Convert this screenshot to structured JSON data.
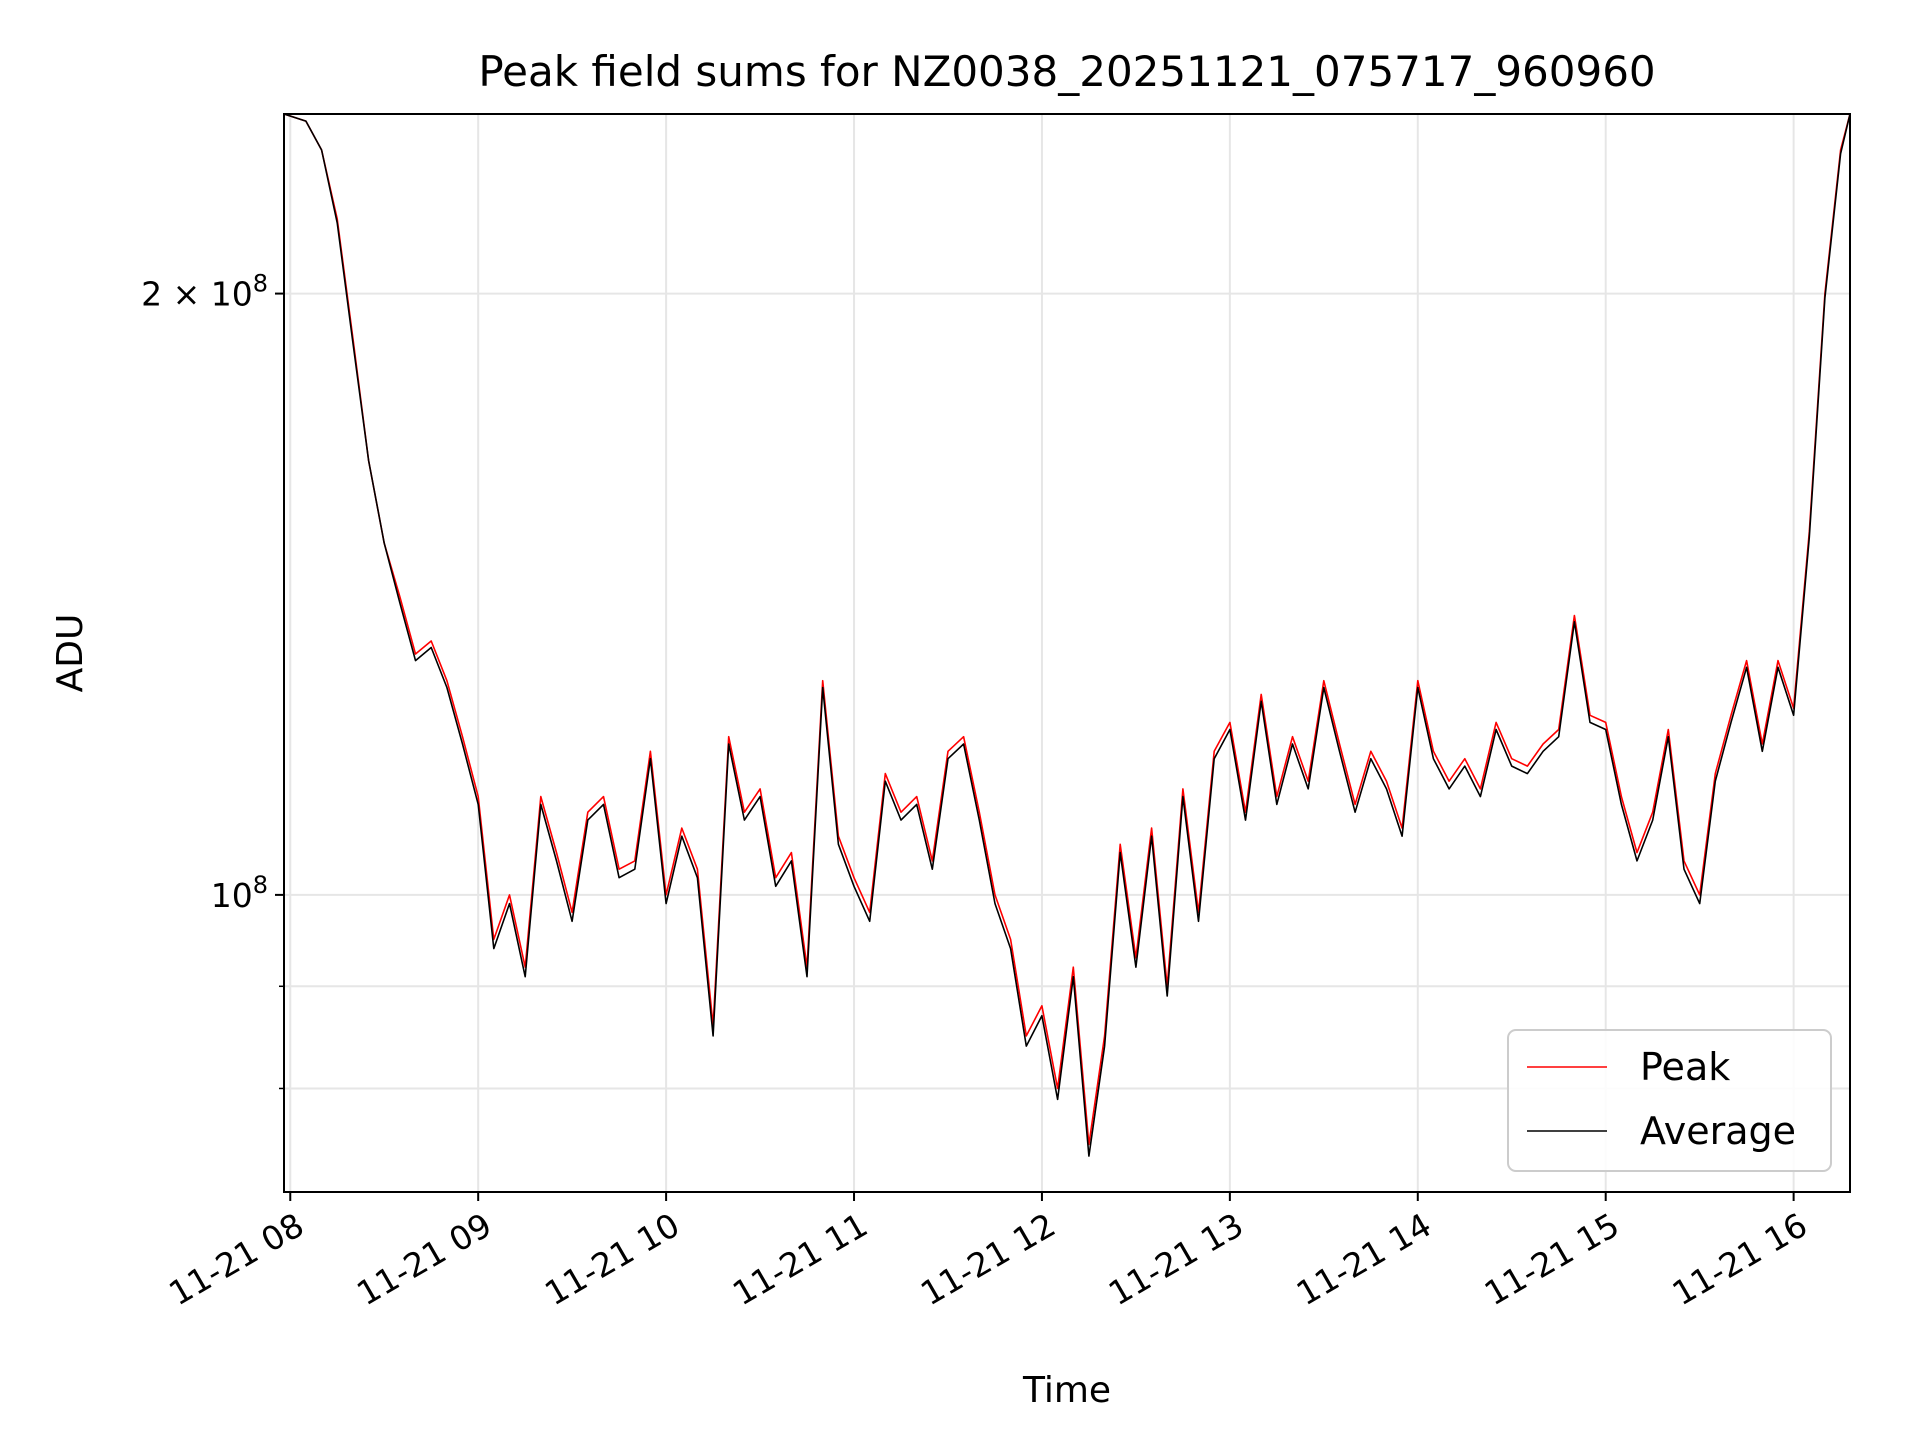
{
  "chart_data": {
    "type": "line",
    "title": "Peak field sums for NZ0038_20251121_075717_960960",
    "xlabel": "Time",
    "ylabel": "ADU",
    "y_scale": "log",
    "ylim": [
      71000000,
      246000000
    ],
    "xlim": [
      "11-21 07:58",
      "11-21 16:18"
    ],
    "grid": true,
    "legend_position": "lower right",
    "x_tick_labels": [
      "11-21 08",
      "11-21 09",
      "11-21 10",
      "11-21 11",
      "11-21 12",
      "11-21 13",
      "11-21 14",
      "11-21 15",
      "11-21 16"
    ],
    "y_tick_labels": [
      {
        "value": 200000000,
        "base": "2 × 10",
        "exp": "8"
      },
      {
        "value": 100000000,
        "base": "10",
        "exp": "8"
      }
    ],
    "y_minor_ticks": [
      90000000,
      80000000
    ],
    "x": [
      "07:58",
      "08:05",
      "08:10",
      "08:15",
      "08:20",
      "08:25",
      "08:30",
      "08:35",
      "08:40",
      "08:45",
      "08:50",
      "08:55",
      "09:00",
      "09:05",
      "09:10",
      "09:15",
      "09:20",
      "09:25",
      "09:30",
      "09:35",
      "09:40",
      "09:45",
      "09:50",
      "09:55",
      "10:00",
      "10:05",
      "10:10",
      "10:15",
      "10:20",
      "10:25",
      "10:30",
      "10:35",
      "10:40",
      "10:45",
      "10:50",
      "10:55",
      "11:00",
      "11:05",
      "11:10",
      "11:15",
      "11:20",
      "11:25",
      "11:30",
      "11:35",
      "11:40",
      "11:45",
      "11:50",
      "11:55",
      "12:00",
      "12:05",
      "12:10",
      "12:15",
      "12:20",
      "12:25",
      "12:30",
      "12:35",
      "12:40",
      "12:45",
      "12:50",
      "12:55",
      "13:00",
      "13:05",
      "13:10",
      "13:15",
      "13:20",
      "13:25",
      "13:30",
      "13:35",
      "13:40",
      "13:45",
      "13:50",
      "13:55",
      "14:00",
      "14:05",
      "14:10",
      "14:15",
      "14:20",
      "14:25",
      "14:30",
      "14:35",
      "14:40",
      "14:45",
      "14:50",
      "14:55",
      "15:00",
      "15:05",
      "15:10",
      "15:15",
      "15:20",
      "15:25",
      "15:30",
      "15:35",
      "15:40",
      "15:45",
      "15:50",
      "15:55",
      "16:00",
      "16:05",
      "16:10",
      "16:15",
      "16:18"
    ],
    "series": [
      {
        "name": "Peak",
        "color": "#ff0000",
        "values": [
          246,
          244,
          236,
          218,
          190,
          165,
          150,
          141,
          132,
          134,
          128,
          120,
          112,
          95,
          100,
          92,
          112,
          105,
          98,
          110,
          112,
          103,
          104,
          118,
          100,
          108,
          103,
          86,
          120,
          110,
          113,
          102,
          105,
          92,
          128,
          107,
          102,
          98,
          115,
          110,
          112,
          104,
          118,
          120,
          110,
          100,
          95,
          85,
          88,
          80,
          92,
          75,
          85,
          106,
          93,
          108,
          90,
          113,
          98,
          118,
          122,
          110,
          126,
          112,
          120,
          114,
          128,
          119,
          111,
          118,
          114,
          108,
          128,
          118,
          114,
          117,
          113,
          122,
          117,
          116,
          119,
          121,
          138,
          123,
          122,
          112,
          105,
          110,
          121,
          104,
          100,
          115,
          123,
          131,
          119,
          131,
          124,
          152,
          200,
          236,
          246
        ]
      },
      {
        "name": "Average",
        "color": "#000000",
        "values": [
          246,
          244,
          236,
          217,
          189,
          165,
          150,
          140,
          131,
          133,
          127,
          119,
          111,
          94,
          99,
          91,
          111,
          104,
          97,
          109,
          111,
          102,
          103,
          117,
          99,
          107,
          102,
          85,
          119,
          109,
          112,
          101,
          104,
          91,
          127,
          106,
          101,
          97,
          114,
          109,
          111,
          103,
          117,
          119,
          109,
          99,
          94,
          84,
          87,
          79,
          91,
          74,
          84,
          105,
          92,
          107,
          89,
          112,
          97,
          117,
          121,
          109,
          125,
          111,
          119,
          113,
          127,
          118,
          110,
          117,
          113,
          107,
          127,
          117,
          113,
          116,
          112,
          121,
          116,
          115,
          118,
          120,
          137,
          122,
          121,
          111,
          104,
          109,
          120,
          103,
          99,
          114,
          122,
          130,
          118,
          130,
          123,
          151,
          199,
          235,
          246
        ]
      }
    ]
  }
}
